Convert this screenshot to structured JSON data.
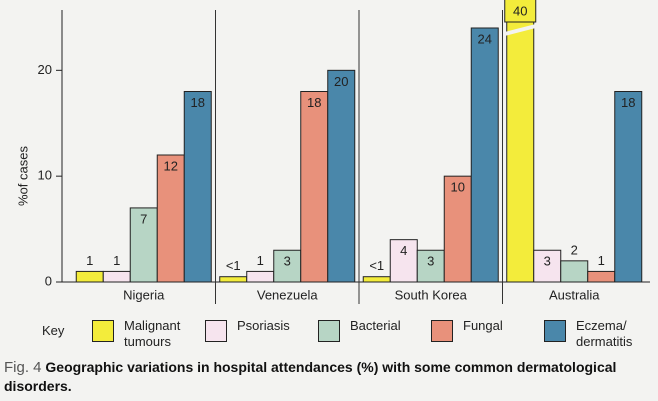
{
  "chart_data": {
    "type": "bar",
    "categories": [
      "Nigeria",
      "Venezuela",
      "South Korea",
      "Australia"
    ],
    "y_label": "%of cases",
    "ylim": [
      0,
      25.7
    ],
    "yticks": [
      0,
      10,
      20
    ],
    "legend_title": "Key",
    "series": [
      {
        "name": "Malignant tumours",
        "color": "#f3ec3b",
        "values": [
          1,
          0.5,
          0.5,
          40
        ],
        "value_labels": [
          "1",
          "<1",
          "<1",
          "40"
        ]
      },
      {
        "name": "Psoriasis",
        "color": "#f6e4ee",
        "values": [
          1,
          1,
          4,
          3
        ]
      },
      {
        "name": "Bacterial",
        "color": "#b7d5c5",
        "values": [
          7,
          3,
          3,
          2
        ]
      },
      {
        "name": "Fungal",
        "color": "#e8917b",
        "values": [
          12,
          18,
          10,
          1
        ]
      },
      {
        "name": "Eczema/ dermatitis",
        "color": "#4a87aa",
        "values": [
          18,
          20,
          24,
          18
        ]
      }
    ],
    "caption_label": "Fig. 4",
    "caption": "Geographic variations in hospital attendances (%) with some common dermatological disorders."
  }
}
